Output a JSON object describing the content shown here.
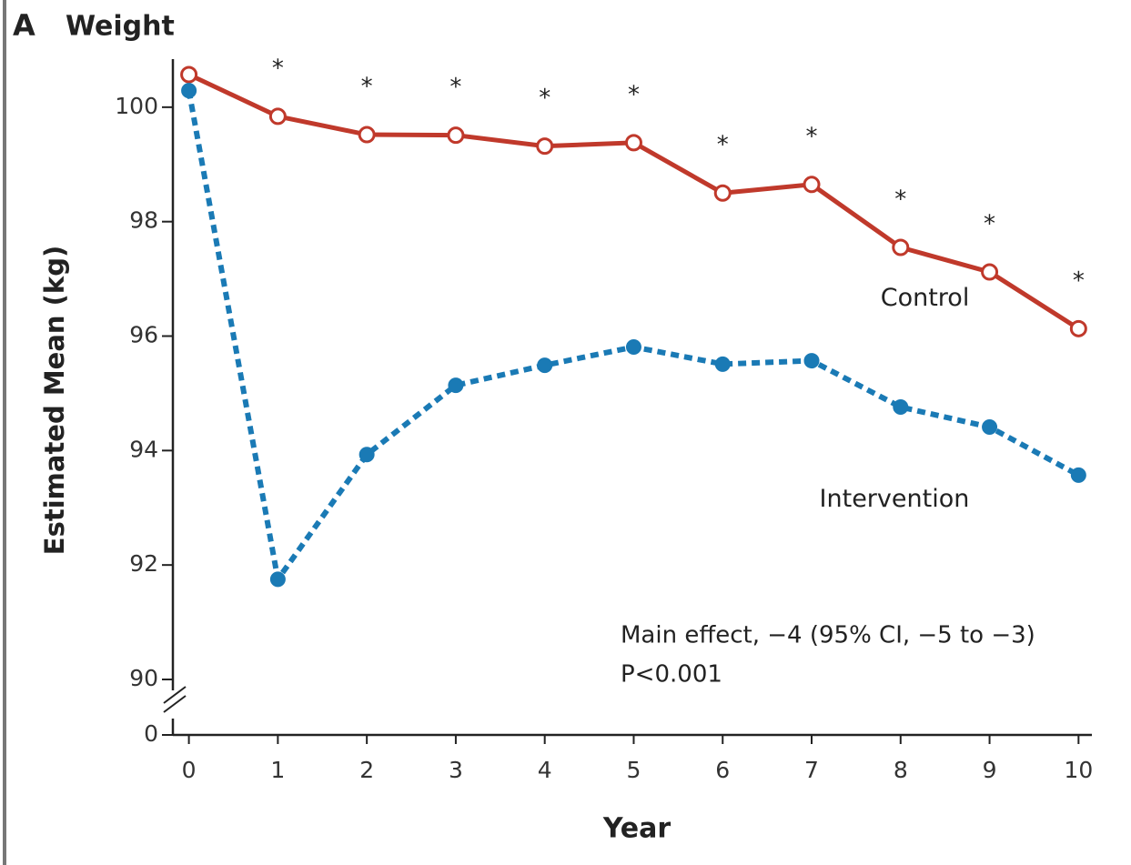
{
  "chart_data": {
    "type": "line",
    "panel": "A",
    "title": "Weight",
    "x_label": "Year",
    "y_label": "Estimated Mean (kg)",
    "x": [
      0,
      1,
      2,
      3,
      4,
      5,
      6,
      7,
      8,
      9,
      10
    ],
    "xlim": [
      -0.18,
      10.15
    ],
    "xticks": [
      0,
      1,
      2,
      3,
      4,
      5,
      6,
      7,
      8,
      9,
      10
    ],
    "ylim": [
      0,
      100.84
    ],
    "y_break": [
      0,
      90
    ],
    "yticks": [
      0,
      90,
      92,
      94,
      96,
      98,
      100
    ],
    "series": [
      {
        "name": "Control",
        "color": "#c0392b",
        "marker": "hollow",
        "dash": false,
        "values": [
          100.57,
          99.84,
          99.52,
          99.51,
          99.32,
          99.38,
          98.5,
          98.65,
          97.55,
          97.12,
          96.13
        ]
      },
      {
        "name": "Intervention",
        "color": "#1a7ab5",
        "marker": "filled",
        "dash": true,
        "values": [
          100.29,
          91.75,
          93.93,
          95.14,
          95.49,
          95.81,
          95.51,
          95.57,
          94.76,
          94.41,
          93.57
        ]
      }
    ],
    "significance": {
      "x": [
        1,
        2,
        3,
        4,
        5,
        6,
        7,
        8,
        9,
        10
      ],
      "labels": [
        "*",
        "*",
        "*",
        "*",
        "*",
        "*",
        "*",
        "*",
        "*",
        "*"
      ]
    },
    "annotation": [
      "Main effect, −4 (95% CI, −5 to −3)",
      "P<0.001"
    ]
  }
}
